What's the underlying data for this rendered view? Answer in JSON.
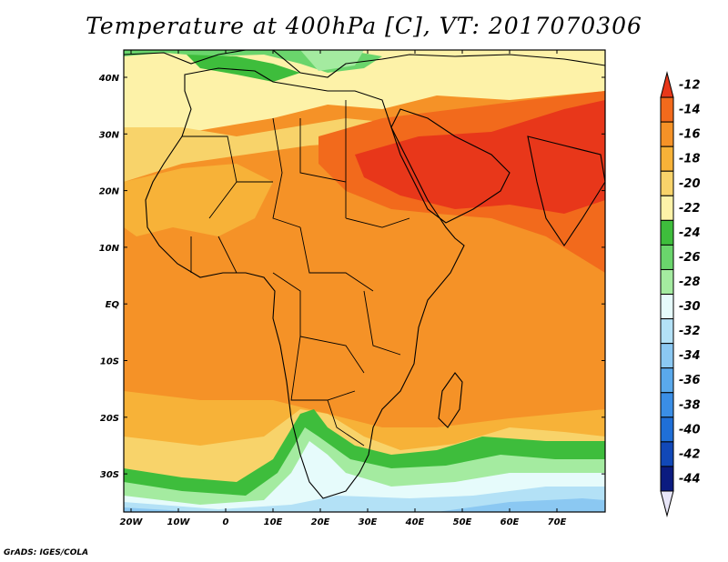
{
  "title": "Temperature at 400hPa [C], VT: 2017070306",
  "credit": "GrADS: IGES/COLA",
  "map": {
    "lat_labels": [
      "40N",
      "30N",
      "20N",
      "10N",
      "EQ",
      "10S",
      "20S",
      "30S"
    ],
    "lon_labels": [
      "20W",
      "10W",
      "0",
      "10E",
      "20E",
      "30E",
      "40E",
      "50E",
      "60E",
      "70E"
    ]
  },
  "colorbar": {
    "labels": [
      "-12",
      "-14",
      "-16",
      "-18",
      "-20",
      "-22",
      "-24",
      "-26",
      "-28",
      "-30",
      "-32",
      "-34",
      "-36",
      "-38",
      "-40",
      "-42",
      "-44"
    ],
    "colors": [
      "#e8371a",
      "#f26a1c",
      "#f59227",
      "#f7b238",
      "#f8d36a",
      "#fdf2a8",
      "#3ebd3c",
      "#6ad56c",
      "#a4eba0",
      "#e6fbfb",
      "#b3e1f6",
      "#8bc8f2",
      "#5aa9ec",
      "#3a8ee6",
      "#1f6fd7",
      "#1148b8",
      "#0b1b80"
    ]
  }
}
